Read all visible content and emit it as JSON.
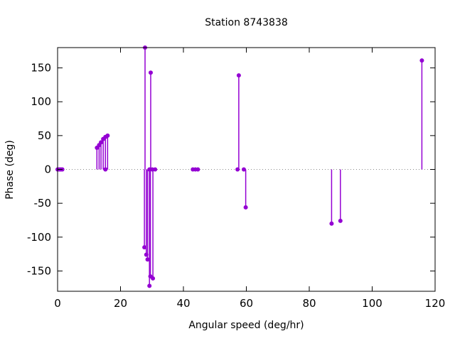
{
  "chart_data": {
    "type": "stem",
    "title": "Station 8743838",
    "xlabel": "Angular speed (deg/hr)",
    "ylabel": "Phase (deg)",
    "xlim": [
      0,
      120
    ],
    "ylim": [
      -180,
      180
    ],
    "xticks": [
      0,
      20,
      40,
      60,
      80,
      100,
      120
    ],
    "yticks": [
      -150,
      -100,
      -50,
      0,
      50,
      100,
      150
    ],
    "grid": false,
    "zero_line": true,
    "legend": "none",
    "series_color": "#9400d3",
    "zero_line_color": "#8a8a8a",
    "border_color": "#000000",
    "points": [
      [
        0,
        0
      ],
      [
        0.5,
        0
      ],
      [
        1,
        0
      ],
      [
        1.5,
        0
      ],
      [
        12.5,
        32
      ],
      [
        13.2,
        36
      ],
      [
        13.8,
        40
      ],
      [
        14.5,
        45
      ],
      [
        15.2,
        48
      ],
      [
        15.9,
        50
      ],
      [
        15.2,
        0
      ],
      [
        27.8,
        180
      ],
      [
        29.6,
        143
      ],
      [
        29.2,
        0
      ],
      [
        30.1,
        0
      ],
      [
        31,
        0
      ],
      [
        27.6,
        -115
      ],
      [
        28.2,
        -126
      ],
      [
        28.6,
        -133
      ],
      [
        29.5,
        -158
      ],
      [
        30.3,
        -161
      ],
      [
        29.2,
        -172
      ],
      [
        43,
        0
      ],
      [
        43.8,
        0
      ],
      [
        44.6,
        0
      ],
      [
        57.2,
        0
      ],
      [
        57.6,
        139
      ],
      [
        59.2,
        0
      ],
      [
        59.8,
        -56
      ],
      [
        87.1,
        -80
      ],
      [
        89.9,
        -76
      ],
      [
        115.8,
        161
      ]
    ]
  }
}
